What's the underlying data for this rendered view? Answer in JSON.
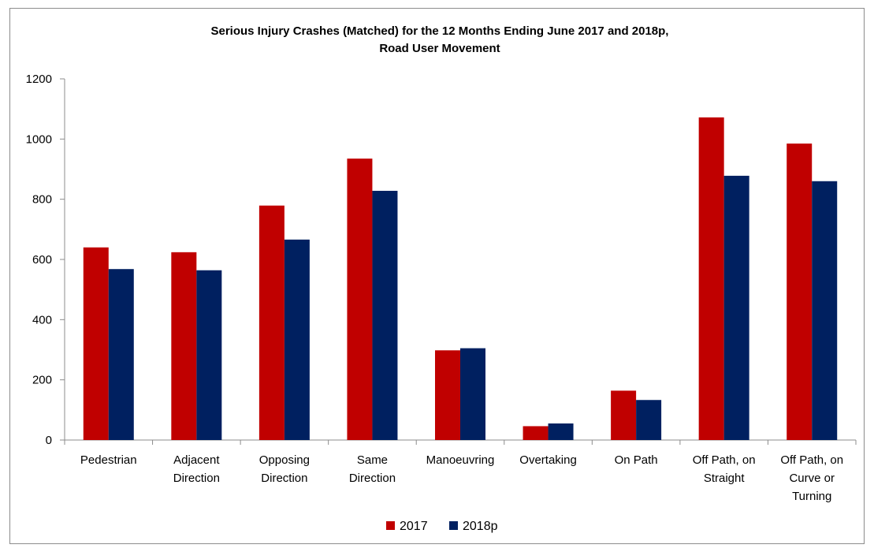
{
  "chart_data": {
    "type": "bar",
    "title": [
      "Serious Injury Crashes (Matched) for the 12 Months Ending June 2017 and 2018p,",
      "Road User Movement"
    ],
    "xlabel": "",
    "ylabel": "",
    "ylim": [
      0,
      1200
    ],
    "yticks": [
      0,
      200,
      400,
      600,
      800,
      1000,
      1200
    ],
    "categories": [
      [
        "Pedestrian"
      ],
      [
        "Adjacent",
        "Direction"
      ],
      [
        "Opposing",
        "Direction"
      ],
      [
        "Same",
        "Direction"
      ],
      [
        "Manoeuvring"
      ],
      [
        "Overtaking"
      ],
      [
        "On Path"
      ],
      [
        "Off Path, on",
        "Straight"
      ],
      [
        "Off Path, on",
        "Curve or",
        "Turning"
      ]
    ],
    "series": [
      {
        "name": "2017",
        "color": "#c00000",
        "values": [
          640,
          624,
          779,
          935,
          298,
          46,
          164,
          1072,
          985
        ]
      },
      {
        "name": "2018p",
        "color": "#002060",
        "values": [
          568,
          564,
          666,
          828,
          305,
          55,
          133,
          878,
          860
        ]
      }
    ],
    "grid": false,
    "legend": "bottom"
  }
}
